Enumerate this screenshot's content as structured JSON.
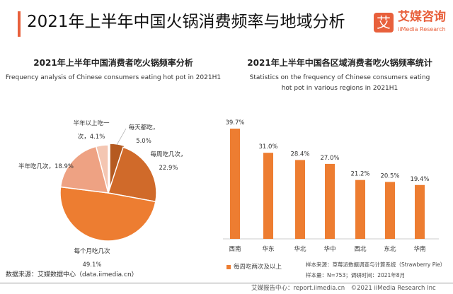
{
  "header": {
    "title": "2021年上半年中国火锅消费频率与地域分析",
    "logo_mark": "艾",
    "logo_cn": "艾媒咨询",
    "logo_en": "iiMedia Research"
  },
  "chart_data": [
    {
      "type": "pie",
      "title": "2021年上半年中国消费者吃火锅频率分析",
      "subtitle": "Frequency analysis of Chinese consumers eating hot pot in 2021H1",
      "slices": [
        {
          "name": "每天都吃",
          "value": 5.0,
          "label1": "每天都吃，",
          "label2": "5.0%",
          "color": "#b55a20"
        },
        {
          "name": "每周吃几次",
          "value": 22.9,
          "label1": "每周吃几次，",
          "label2": "22.9%",
          "color": "#d06a2a"
        },
        {
          "name": "每个月吃几次",
          "value": 49.1,
          "label1": "每个月吃几次",
          "label2": "49.1%",
          "color": "#ed7d31"
        },
        {
          "name": "半年吃几次",
          "value": 18.9,
          "label1": "半年吃几次，18.9%",
          "label2": "",
          "color": "#eea283"
        },
        {
          "name": "半年以上吃一次",
          "value": 4.1,
          "label1": "半年以上吃一",
          "label2": "次，4.1%",
          "color": "#f4c6b2"
        }
      ]
    },
    {
      "type": "bar",
      "title": "2021年上半年中国各区域消费者吃火锅频率统计",
      "subtitle": "Statistics on the frequency of Chinese consumers eating hot pot in various regions in 2021H1",
      "categories": [
        "西南",
        "华东",
        "华北",
        "华中",
        "西北",
        "东北",
        "华南"
      ],
      "series": [
        {
          "name": "每周吃两次及以上",
          "values": [
            39.7,
            31.0,
            28.4,
            27.0,
            21.2,
            20.5,
            19.4
          ],
          "color": "#ed7d31"
        }
      ],
      "value_labels": [
        "39.7%",
        "31.0%",
        "28.4%",
        "27.0%",
        "21.2%",
        "20.5%",
        "19.4%"
      ],
      "ylim": [
        0,
        40
      ],
      "legend": "bottom-left",
      "grid": false
    }
  ],
  "source": "数据来源：艾媒数据中心（data.iimedia.cn）",
  "notes": {
    "sample_source": "样本来源：草莓派数据调查与计算系统（Strawberry Pie）",
    "sample_size": "样本量：N=753；调研时间：2021年8月"
  },
  "footer": "艾媒报告中心：report.iimedia.cn　©2021  iiMedia Research  Inc"
}
